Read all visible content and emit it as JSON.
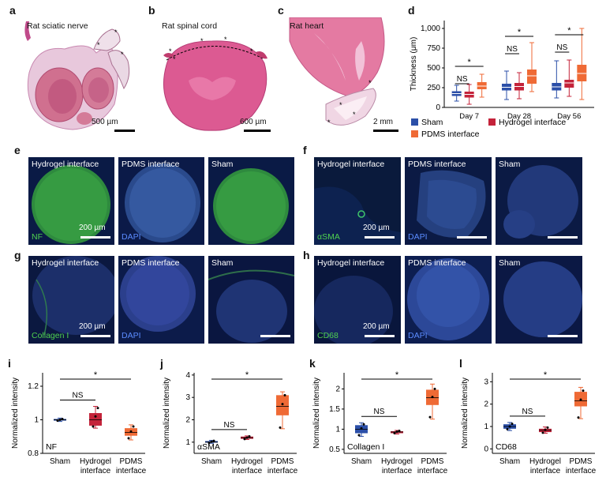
{
  "panel_labels": {
    "a": "a",
    "b": "b",
    "c": "c",
    "d": "d",
    "e": "e",
    "f": "f",
    "g": "g",
    "h": "h",
    "i": "i",
    "j": "j",
    "k": "k",
    "l": "l"
  },
  "histology": [
    {
      "title": "Rat sciatic nerve",
      "scale": "500 µm"
    },
    {
      "title": "Rat spinal cord",
      "scale": "600 µm"
    },
    {
      "title": "Rat heart",
      "scale": "2 mm"
    }
  ],
  "fluor": {
    "e": {
      "tiles": [
        "Hydrogel interface",
        "PDMS interface",
        "Sham"
      ],
      "stain": "NF",
      "dapi": "DAPI",
      "scale": "200 µm"
    },
    "f": {
      "tiles": [
        "Hydrogel interface",
        "PDMS interface",
        "Sham"
      ],
      "stain": "αSMA",
      "dapi": "DAPI",
      "scale": "200 µm"
    },
    "g": {
      "tiles": [
        "Hydrogel interface",
        "PDMS interface",
        "Sham"
      ],
      "stain": "Collagen I",
      "dapi": "DAPI",
      "scale": "200 µm"
    },
    "h": {
      "tiles": [
        "Hydrogel interface",
        "PDMS interface",
        "Sham"
      ],
      "stain": "CD68",
      "dapi": "DAPI",
      "scale": "200 µm"
    }
  },
  "colors": {
    "sham": "#2b4fa8",
    "hydrogel": "#c4233a",
    "pdms": "#ef6a35"
  },
  "chart_data": [
    {
      "id": "d",
      "type": "box",
      "ylabel": "Thickness (μm)",
      "ylim": [
        0,
        1100
      ],
      "yticks": [
        0,
        250,
        500,
        750,
        1000
      ],
      "ytick_labels": [
        "0",
        "250",
        "500",
        "750",
        "1,000"
      ],
      "categories": [
        "Day 7",
        "Day 28",
        "Day 56"
      ],
      "legend": [
        "Sham",
        "Hydrogel interface",
        "PDMS interface"
      ],
      "annotations": [
        {
          "group": 0,
          "star": "*",
          "ns": "NS"
        },
        {
          "group": 1,
          "star": "*",
          "ns": "NS"
        },
        {
          "group": 2,
          "star": "*",
          "ns": "NS"
        }
      ],
      "series": [
        {
          "name": "Sham",
          "boxes": [
            {
              "min": 80,
              "q1": 145,
              "median": 175,
              "q3": 205,
              "max": 280
            },
            {
              "min": 100,
              "q1": 215,
              "median": 255,
              "q3": 300,
              "max": 460
            },
            {
              "min": 120,
              "q1": 215,
              "median": 260,
              "q3": 310,
              "max": 590
            }
          ]
        },
        {
          "name": "Hydrogel interface",
          "boxes": [
            {
              "min": 40,
              "q1": 125,
              "median": 165,
              "q3": 200,
              "max": 290
            },
            {
              "min": 110,
              "q1": 215,
              "median": 265,
              "q3": 310,
              "max": 440
            },
            {
              "min": 140,
              "q1": 250,
              "median": 310,
              "q3": 350,
              "max": 600
            }
          ]
        },
        {
          "name": "PDMS interface",
          "boxes": [
            {
              "min": 130,
              "q1": 230,
              "median": 270,
              "q3": 320,
              "max": 420
            },
            {
              "min": 200,
              "q1": 300,
              "median": 400,
              "q3": 480,
              "max": 820
            },
            {
              "min": 100,
              "q1": 330,
              "median": 430,
              "q3": 540,
              "max": 1000
            }
          ]
        }
      ]
    },
    {
      "id": "i",
      "type": "box",
      "ylabel": "Normalized intensity",
      "inner_label": "NF",
      "ylim": [
        0.8,
        1.28
      ],
      "yticks": [
        0.8,
        1.0,
        1.2
      ],
      "ytick_labels": [
        "0.8",
        "1",
        "1.2"
      ],
      "categories": [
        "Sham",
        "Hydrogel\ninterface",
        "PDMS\ninterface"
      ],
      "cat_lines": [
        [
          "Sham"
        ],
        [
          "Hydrogel",
          "interface"
        ],
        [
          "PDMS",
          "interface"
        ]
      ],
      "ns": "NS",
      "star": "*",
      "boxes": [
        {
          "min": 0.99,
          "q1": 0.995,
          "median": 1.0,
          "q3": 1.005,
          "max": 1.01,
          "points": [
            0.995,
            1.0,
            1.005
          ]
        },
        {
          "min": 0.95,
          "q1": 0.965,
          "median": 1.0,
          "q3": 1.04,
          "max": 1.08,
          "points": [
            0.96,
            1.02,
            1.07
          ]
        },
        {
          "min": 0.88,
          "q1": 0.905,
          "median": 0.925,
          "q3": 0.95,
          "max": 0.97,
          "points": [
            0.89,
            0.93,
            0.96
          ]
        }
      ]
    },
    {
      "id": "j",
      "type": "box",
      "ylabel": "Normalized intensity",
      "inner_label": "αSMA",
      "ylim": [
        0.5,
        4.1
      ],
      "yticks": [
        1,
        2,
        3,
        4
      ],
      "ytick_labels": [
        "1",
        "2",
        "3",
        "4"
      ],
      "categories": [
        "Sham",
        "Hydrogel\ninterface",
        "PDMS\ninterface"
      ],
      "cat_lines": [
        [
          "Sham"
        ],
        [
          "Hydrogel",
          "interface"
        ],
        [
          "PDMS",
          "interface"
        ]
      ],
      "ns": "NS",
      "star": "*",
      "boxes": [
        {
          "min": 0.95,
          "q1": 0.98,
          "median": 1.0,
          "q3": 1.05,
          "max": 1.08,
          "points": [
            0.97,
            1.02,
            1.06
          ]
        },
        {
          "min": 1.12,
          "q1": 1.15,
          "median": 1.2,
          "q3": 1.25,
          "max": 1.28,
          "points": [
            1.14,
            1.2,
            1.26
          ]
        },
        {
          "min": 1.6,
          "q1": 2.2,
          "median": 2.6,
          "q3": 3.1,
          "max": 3.25,
          "points": [
            1.65,
            2.7,
            3.1
          ]
        }
      ]
    },
    {
      "id": "k",
      "type": "box",
      "ylabel": "Normalized intensity",
      "inner_label": "Collagen I",
      "ylim": [
        0.4,
        2.4
      ],
      "yticks": [
        0.5,
        1,
        1.5,
        2
      ],
      "ytick_labels": [
        "0.5",
        "1",
        "1.5",
        "2"
      ],
      "categories": [
        "Sham",
        "Hydrogel\ninterface",
        "PDMS\ninterface"
      ],
      "cat_lines": [
        [
          "Sham"
        ],
        [
          "Hydrogel",
          "interface"
        ],
        [
          "PDMS",
          "interface"
        ]
      ],
      "ns": "NS",
      "star": "*",
      "boxes": [
        {
          "min": 0.82,
          "q1": 0.9,
          "median": 1.0,
          "q3": 1.1,
          "max": 1.16,
          "points": [
            0.85,
            1.02,
            1.12
          ]
        },
        {
          "min": 0.88,
          "q1": 0.9,
          "median": 0.93,
          "q3": 0.95,
          "max": 0.97,
          "points": [
            0.9,
            0.94,
            0.96
          ]
        },
        {
          "min": 1.25,
          "q1": 1.6,
          "median": 1.78,
          "q3": 1.98,
          "max": 2.12,
          "points": [
            1.3,
            1.8,
            2.0
          ]
        }
      ]
    },
    {
      "id": "l",
      "type": "box",
      "ylabel": "Normalized intensity",
      "inner_label": "CD68",
      "ylim": [
        -0.2,
        3.4
      ],
      "yticks": [
        0,
        1,
        2,
        3
      ],
      "ytick_labels": [
        "0",
        "1",
        "2",
        "3"
      ],
      "categories": [
        "Sham",
        "Hydrogel\ninterface",
        "PDMS\ninterface"
      ],
      "cat_lines": [
        [
          "Sham"
        ],
        [
          "Hydrogel",
          "interface"
        ],
        [
          "PDMS",
          "interface"
        ]
      ],
      "ns": "NS",
      "star": "*",
      "boxes": [
        {
          "min": 0.82,
          "q1": 0.9,
          "median": 1.0,
          "q3": 1.1,
          "max": 1.18,
          "points": [
            0.88,
            1.0,
            1.12
          ]
        },
        {
          "min": 0.7,
          "q1": 0.75,
          "median": 0.83,
          "q3": 0.9,
          "max": 0.98,
          "points": [
            0.72,
            0.85,
            0.95
          ]
        },
        {
          "min": 1.35,
          "q1": 1.9,
          "median": 2.15,
          "q3": 2.55,
          "max": 2.75,
          "points": [
            1.4,
            2.2,
            2.6
          ]
        }
      ]
    }
  ]
}
